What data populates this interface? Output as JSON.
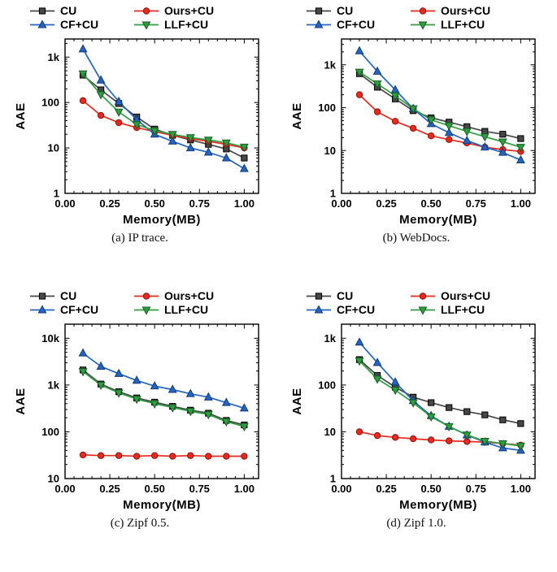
{
  "figure": {
    "xlabel": "Memory(MB)",
    "ylabel": "AAE"
  },
  "palette": {
    "cu": "#474747",
    "ours_cu": "#e8291d",
    "cf_cu": "#2465c2",
    "llf_cu": "#2f9e41"
  },
  "chart_data": [
    {
      "type": "line",
      "title": "(a) IP trace.",
      "xlabel": "Memory(MB)",
      "ylabel": "AAE",
      "x": [
        0.1,
        0.2,
        0.3,
        0.4,
        0.5,
        0.6,
        0.7,
        0.8,
        0.9,
        1.0
      ],
      "xlim": [
        0,
        1.08
      ],
      "xticks": [
        0,
        0.25,
        0.5,
        0.75,
        1.0
      ],
      "xtick_labels": [
        "0.00",
        "0.25",
        "0.50",
        "0.75",
        "1.00"
      ],
      "ylog": true,
      "ylim": [
        1,
        2500
      ],
      "yticks": [
        1,
        10,
        100,
        1000
      ],
      "ytick_labels": [
        "1",
        "10",
        "100",
        "1k"
      ],
      "legend_position": "top",
      "grid": false,
      "series": [
        {
          "name": "CU",
          "marker": "square",
          "color": "#474747",
          "edge": "#000000",
          "values": [
            400,
            190,
            95,
            48,
            26,
            19,
            15,
            12,
            9.5,
            6
          ]
        },
        {
          "name": "Ours+CU",
          "marker": "circle",
          "color": "#e8291d",
          "edge": "#8f120d",
          "values": [
            110,
            52,
            36,
            28,
            23,
            19,
            16,
            14,
            12,
            10
          ]
        },
        {
          "name": "CF+CU",
          "marker": "triangle-up",
          "color": "#2465c2",
          "edge": "#123a78",
          "values": [
            1500,
            310,
            105,
            42,
            20,
            14,
            10,
            8,
            6,
            3.5
          ]
        },
        {
          "name": "LLF+CU",
          "marker": "triangle-down",
          "color": "#2f9e41",
          "edge": "#175c24",
          "values": [
            430,
            150,
            62,
            33,
            24,
            20,
            17,
            15,
            13,
            10.5
          ]
        }
      ]
    },
    {
      "type": "line",
      "title": "(b) WebDocs.",
      "xlabel": "Memory(MB)",
      "ylabel": "AAE",
      "x": [
        0.1,
        0.2,
        0.3,
        0.4,
        0.5,
        0.6,
        0.7,
        0.8,
        0.9,
        1.0
      ],
      "xlim": [
        0,
        1.08
      ],
      "xticks": [
        0,
        0.25,
        0.5,
        0.75,
        1.0
      ],
      "xtick_labels": [
        "0.00",
        "0.25",
        "0.50",
        "0.75",
        "1.00"
      ],
      "ylog": true,
      "ylim": [
        1,
        4000
      ],
      "yticks": [
        1,
        10,
        100,
        1000
      ],
      "ytick_labels": [
        "1",
        "10",
        "100",
        "1k"
      ],
      "legend_position": "top",
      "grid": false,
      "series": [
        {
          "name": "CU",
          "marker": "square",
          "color": "#474747",
          "edge": "#000000",
          "values": [
            620,
            300,
            160,
            85,
            58,
            46,
            36,
            28,
            24,
            19
          ]
        },
        {
          "name": "Ours+CU",
          "marker": "circle",
          "color": "#e8291d",
          "edge": "#8f120d",
          "values": [
            200,
            80,
            48,
            33,
            22,
            18,
            15,
            12,
            10.5,
            9.5
          ]
        },
        {
          "name": "CF+CU",
          "marker": "triangle-up",
          "color": "#2465c2",
          "edge": "#123a78",
          "values": [
            2100,
            700,
            260,
            95,
            42,
            26,
            17,
            12,
            9,
            6
          ]
        },
        {
          "name": "LLF+CU",
          "marker": "triangle-down",
          "color": "#2f9e41",
          "edge": "#175c24",
          "values": [
            680,
            360,
            190,
            95,
            52,
            38,
            28,
            21,
            16,
            12
          ]
        }
      ]
    },
    {
      "type": "line",
      "title": "(c) Zipf 0.5.",
      "xlabel": "Memory(MB)",
      "ylabel": "AAE",
      "x": [
        0.1,
        0.2,
        0.3,
        0.4,
        0.5,
        0.6,
        0.7,
        0.8,
        0.9,
        1.0
      ],
      "xlim": [
        0,
        1.08
      ],
      "xticks": [
        0,
        0.25,
        0.5,
        0.75,
        1.0
      ],
      "xtick_labels": [
        "0.00",
        "0.25",
        "0.50",
        "0.75",
        "1.00"
      ],
      "ylog": true,
      "ylim": [
        10,
        20000
      ],
      "yticks": [
        10,
        100,
        1000,
        10000
      ],
      "ytick_labels": [
        "10",
        "100",
        "1k",
        "10k"
      ],
      "legend_position": "top",
      "grid": false,
      "series": [
        {
          "name": "CU",
          "marker": "square",
          "color": "#474747",
          "edge": "#000000",
          "values": [
            2100,
            1050,
            720,
            530,
            430,
            350,
            290,
            250,
            175,
            140
          ]
        },
        {
          "name": "Ours+CU",
          "marker": "circle",
          "color": "#e8291d",
          "edge": "#8f120d",
          "values": [
            32,
            31,
            31,
            30,
            31,
            30,
            31,
            30,
            30,
            30
          ]
        },
        {
          "name": "CF+CU",
          "marker": "triangle-up",
          "color": "#2465c2",
          "edge": "#123a78",
          "values": [
            4800,
            2500,
            1750,
            1250,
            950,
            800,
            650,
            550,
            420,
            320
          ]
        },
        {
          "name": "LLF+CU",
          "marker": "triangle-down",
          "color": "#2f9e41",
          "edge": "#175c24",
          "values": [
            1950,
            1000,
            680,
            500,
            400,
            330,
            275,
            235,
            165,
            130
          ]
        }
      ]
    },
    {
      "type": "line",
      "title": "(d) Zipf 1.0.",
      "xlabel": "Memory(MB)",
      "ylabel": "AAE",
      "x": [
        0.1,
        0.2,
        0.3,
        0.4,
        0.5,
        0.6,
        0.7,
        0.8,
        0.9,
        1.0
      ],
      "xlim": [
        0,
        1.08
      ],
      "xticks": [
        0,
        0.25,
        0.5,
        0.75,
        1.0
      ],
      "xtick_labels": [
        "0.00",
        "0.25",
        "0.50",
        "0.75",
        "1.00"
      ],
      "ylog": true,
      "ylim": [
        1,
        2000
      ],
      "yticks": [
        1,
        10,
        100,
        1000
      ],
      "ytick_labels": [
        "1",
        "10",
        "100",
        "1k"
      ],
      "legend_position": "top",
      "grid": false,
      "series": [
        {
          "name": "CU",
          "marker": "square",
          "color": "#474747",
          "edge": "#000000",
          "values": [
            350,
            160,
            90,
            55,
            42,
            33,
            27,
            23,
            18,
            15
          ]
        },
        {
          "name": "Ours+CU",
          "marker": "circle",
          "color": "#e8291d",
          "edge": "#8f120d",
          "values": [
            10,
            8.3,
            7.6,
            7.1,
            6.7,
            6.4,
            6.2,
            6.0,
            5.6,
            5.2
          ]
        },
        {
          "name": "CF+CU",
          "marker": "triangle-up",
          "color": "#2465c2",
          "edge": "#123a78",
          "values": [
            820,
            300,
            115,
            46,
            22,
            13,
            8.5,
            6,
            4.5,
            4
          ]
        },
        {
          "name": "LLF+CU",
          "marker": "triangle-down",
          "color": "#2f9e41",
          "edge": "#175c24",
          "values": [
            330,
            135,
            78,
            42,
            21,
            13,
            8.6,
            6.3,
            5.6,
            5
          ]
        }
      ]
    }
  ]
}
